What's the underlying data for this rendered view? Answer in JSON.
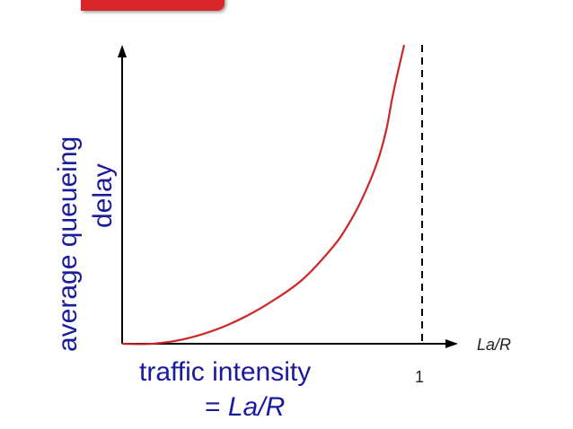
{
  "chart_data": {
    "type": "line",
    "ylabel_lines": [
      "average queueing",
      "delay"
    ],
    "xlabel_lines": [
      "traffic intensity",
      "= La/R"
    ],
    "xlabel_prefix": "= ",
    "xlabel_italic": "La/R",
    "x_axis_end_label": "La/R",
    "asymptote_label": "1",
    "xlim": [
      0,
      1.1
    ],
    "asymptote_x": 1,
    "grid": false,
    "series": [
      {
        "color": "#e02020",
        "x": [
          0,
          0.1,
          0.2,
          0.3,
          0.4,
          0.5,
          0.6,
          0.7,
          0.75,
          0.8,
          0.85,
          0.88,
          0.9,
          0.92,
          0.94
        ],
        "y": [
          0,
          0,
          0.02,
          0.06,
          0.12,
          0.2,
          0.3,
          0.45,
          0.55,
          0.68,
          0.85,
          1.0,
          1.15,
          1.28,
          1.4
        ]
      }
    ],
    "colors": {
      "axis": "#000000",
      "asymptote": "#000000",
      "label": "#1a1a9c",
      "accent_bar": "#d8262a"
    }
  }
}
